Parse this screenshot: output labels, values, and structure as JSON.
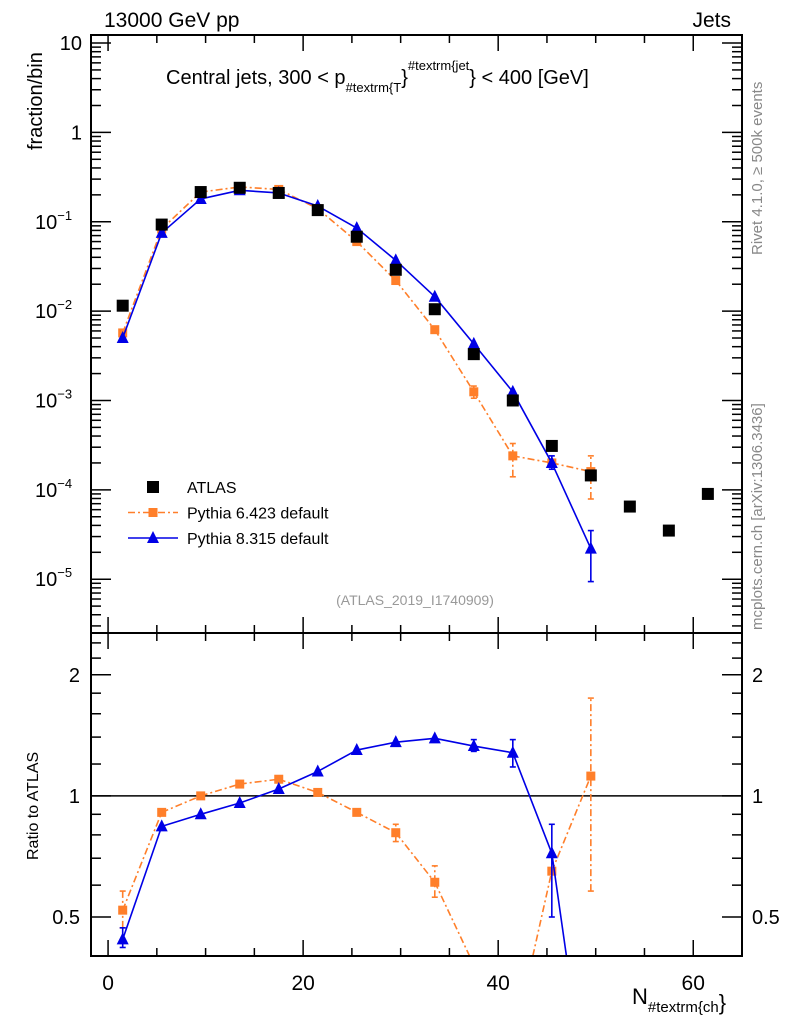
{
  "header": {
    "left": "13000 GeV pp",
    "right": "Jets"
  },
  "side": {
    "top": "Rivet 4.1.0, ≥ 500k events",
    "bottom": "mcplots.cern.ch [arXiv:1306.3436]"
  },
  "watermark": "(ATLAS_2019_I1740909)",
  "colors": {
    "atlas": "#000000",
    "py6": "#ff7f2a",
    "py8": "#0000e6"
  },
  "chart_data": [
    {
      "type": "scatter",
      "panel": "main",
      "title": {
        "pre": "Central jets, 300 < p",
        "sub": "#textrm{T",
        "mid": "}",
        "sup": "#textrm{jet",
        "post": "} < 400 [GeV]"
      },
      "ylabel": "fraction/bin",
      "yscale": "log",
      "ylim": [
        2.5e-06,
        12.3
      ],
      "xlim": [
        -1.75,
        65
      ],
      "ytick_labels": [
        {
          "v": 10,
          "b": "10",
          "e": ""
        },
        {
          "v": 1,
          "b": "1",
          "e": ""
        },
        {
          "v": 0.1,
          "b": "10",
          "e": "−1"
        },
        {
          "v": 0.01,
          "b": "10",
          "e": "−2"
        },
        {
          "v": 0.001,
          "b": "10",
          "e": "−3"
        },
        {
          "v": 0.0001,
          "b": "10",
          "e": "−4"
        },
        {
          "v": 1e-05,
          "b": "10",
          "e": "−5"
        }
      ],
      "legend": {
        "placement": "bottom-left",
        "entries": [
          "ATLAS",
          "Pythia 6.423 default",
          "Pythia 8.315 default"
        ]
      },
      "series": [
        {
          "name": "ATLAS",
          "marker": "square",
          "line": "none",
          "x": [
            1.5,
            5.5,
            9.5,
            13.5,
            17.5,
            21.5,
            25.5,
            29.5,
            33.5,
            37.5,
            41.5,
            45.5,
            49.5,
            53.5,
            57.5,
            61.5
          ],
          "y": [
            0.0115,
            0.093,
            0.215,
            0.24,
            0.21,
            0.135,
            0.068,
            0.029,
            0.0105,
            0.0033,
            0.001,
            0.00031,
            0.000145,
            6.5e-05,
            3.5e-05,
            9e-05
          ]
        },
        {
          "name": "Pythia 6.423 default",
          "marker": "square-small",
          "line": "dashdot",
          "x": [
            1.5,
            5.5,
            9.5,
            13.5,
            17.5,
            21.5,
            25.5,
            29.5,
            33.5,
            37.5,
            41.5,
            45.5,
            49.5
          ],
          "y": [
            0.0057,
            0.083,
            0.215,
            0.245,
            0.23,
            0.14,
            0.06,
            0.022,
            0.0062,
            0.00125,
            0.00024,
            0.0002,
            0.00016
          ],
          "err": [
            null,
            null,
            null,
            null,
            null,
            null,
            null,
            null,
            null,
            [
              0.00106,
              0.00145
            ],
            [
              0.00014,
              0.00033
            ],
            null,
            [
              7.9e-05,
              0.00024
            ]
          ]
        },
        {
          "name": "Pythia 8.315 default",
          "marker": "triangle",
          "line": "solid",
          "x": [
            1.5,
            5.5,
            9.5,
            13.5,
            17.5,
            21.5,
            25.5,
            29.5,
            33.5,
            37.5,
            41.5,
            45.5,
            49.5
          ],
          "y": [
            0.005,
            0.075,
            0.18,
            0.225,
            0.21,
            0.15,
            0.085,
            0.037,
            0.0145,
            0.0043,
            0.00125,
            0.0002,
            2.2e-05
          ],
          "err": [
            null,
            null,
            null,
            null,
            null,
            null,
            null,
            null,
            null,
            null,
            null,
            [
              0.00017,
              0.00024
            ],
            [
              9.4e-06,
              3.5e-05
            ]
          ]
        }
      ]
    },
    {
      "type": "line",
      "panel": "ratio",
      "ylabel": "Ratio to ATLAS",
      "xlabel": {
        "base": "N",
        "sub": "#textrm{ch",
        "post": "}"
      },
      "yscale": "log",
      "ylim": [
        0.4,
        2.54
      ],
      "xlim": [
        -1.75,
        65
      ],
      "xtick_labels": [
        "0",
        "20",
        "40",
        "60"
      ],
      "xticks": [
        0,
        20,
        40,
        60
      ],
      "ytick_labels": [
        {
          "v": 2,
          "t": "2"
        },
        {
          "v": 1,
          "t": "1"
        },
        {
          "v": 0.5,
          "t": "0.5"
        }
      ],
      "reference": 1,
      "series": [
        {
          "name": "Pythia 6.423 default",
          "x": [
            1.5,
            5.5,
            9.5,
            13.5,
            17.5,
            21.5,
            25.5,
            29.5,
            33.5,
            37.5,
            41.5,
            45.5,
            49.5
          ],
          "y": [
            0.52,
            0.91,
            1.0,
            1.07,
            1.1,
            1.02,
            0.91,
            0.81,
            0.61,
            0.38,
            0.24,
            0.65,
            1.12
          ],
          "err": [
            [
              0.47,
              0.58
            ],
            null,
            null,
            null,
            null,
            null,
            null,
            [
              0.77,
              0.85
            ],
            [
              0.56,
              0.67
            ],
            null,
            null,
            null,
            [
              0.58,
              1.75
            ]
          ]
        },
        {
          "name": "Pythia 8.315 default",
          "x": [
            1.5,
            5.5,
            9.5,
            13.5,
            17.5,
            21.5,
            25.5,
            29.5,
            33.5,
            37.5,
            41.5,
            45.5,
            49.5
          ],
          "y": [
            0.44,
            0.84,
            0.9,
            0.96,
            1.04,
            1.15,
            1.3,
            1.36,
            1.39,
            1.33,
            1.28,
            0.72,
            0.15
          ],
          "err": [
            [
              0.42,
              0.47
            ],
            null,
            null,
            null,
            null,
            null,
            null,
            null,
            null,
            [
              1.29,
              1.38
            ],
            [
              1.18,
              1.38
            ],
            [
              0.5,
              0.85
            ],
            null
          ]
        }
      ]
    }
  ]
}
